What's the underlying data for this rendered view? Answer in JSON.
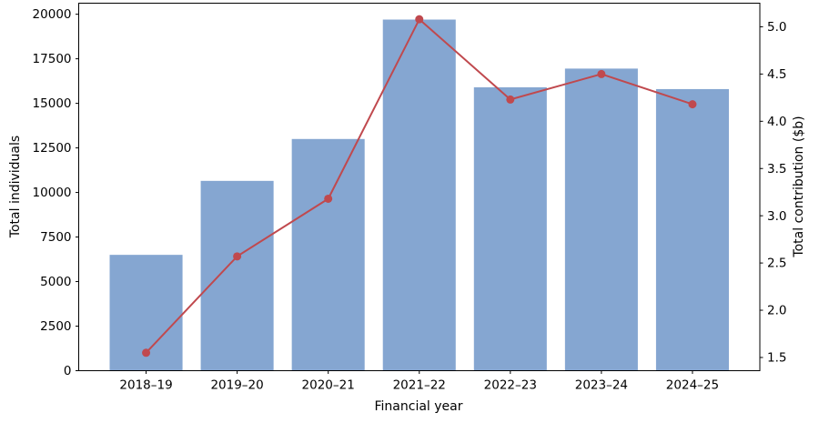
{
  "chart_data": {
    "type": "bar",
    "subtype": "combo-bar-line-dual-axis",
    "categories": [
      "2018–19",
      "2019–20",
      "2020–21",
      "2021–22",
      "2022–23",
      "2023–24",
      "2024–25"
    ],
    "series": [
      {
        "name": "Total individuals",
        "type": "bar",
        "axis": "left",
        "color": "#85a6d1",
        "values": [
          6500,
          10650,
          13000,
          19700,
          15900,
          16950,
          15800
        ]
      },
      {
        "name": "Total contribution ($b)",
        "type": "line",
        "axis": "right",
        "color": "#c0494e",
        "marker": "circle",
        "values": [
          1.55,
          2.57,
          3.18,
          5.08,
          4.23,
          4.5,
          4.18
        ]
      }
    ],
    "xlabel": "Financial year",
    "ylabel_left": "Total individuals",
    "ylabel_right": "Total contribution ($b)",
    "left_axis": {
      "min": 0,
      "max": 20620,
      "ticks": [
        0,
        2500,
        5000,
        7500,
        10000,
        12500,
        15000,
        17500,
        20000
      ]
    },
    "right_axis": {
      "min": 1.36,
      "max": 5.25,
      "ticks": [
        1.5,
        2.0,
        2.5,
        3.0,
        3.5,
        4.0,
        4.5,
        5.0
      ]
    },
    "grid": false,
    "legend": "none",
    "spine_color": "#000000",
    "bar_width_fraction": 0.8
  }
}
